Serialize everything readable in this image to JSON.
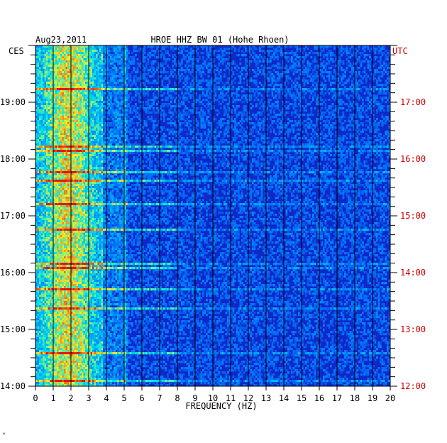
{
  "chart_data": {
    "type": "heatmap",
    "date": "Aug23,2011",
    "title": "HROE HHZ BW 01 (Hohe Rhoen)",
    "left_timezone": "CES",
    "right_timezone": "UTC",
    "xlabel": "FREQUENCY (HZ)",
    "xlim": [
      0,
      20
    ],
    "x_ticks": [
      "0",
      "1",
      "2",
      "3",
      "4",
      "5",
      "6",
      "7",
      "8",
      "9",
      "10",
      "11",
      "12",
      "13",
      "14",
      "15",
      "16",
      "17",
      "18",
      "19",
      "20"
    ],
    "y_range_hours_local": [
      14,
      20
    ],
    "left_y_ticks": [
      "19:00",
      "18:00",
      "17:00",
      "16:00",
      "15:00",
      "14:00"
    ],
    "right_y_ticks": [
      "17:00",
      "16:00",
      "15:00",
      "14:00",
      "13:00",
      "12:00"
    ],
    "colors": {
      "background": "#1028c8",
      "text_left": "#000000",
      "text_right": "#cc0000",
      "grid": "#000000"
    }
  },
  "footer_mark": "*"
}
